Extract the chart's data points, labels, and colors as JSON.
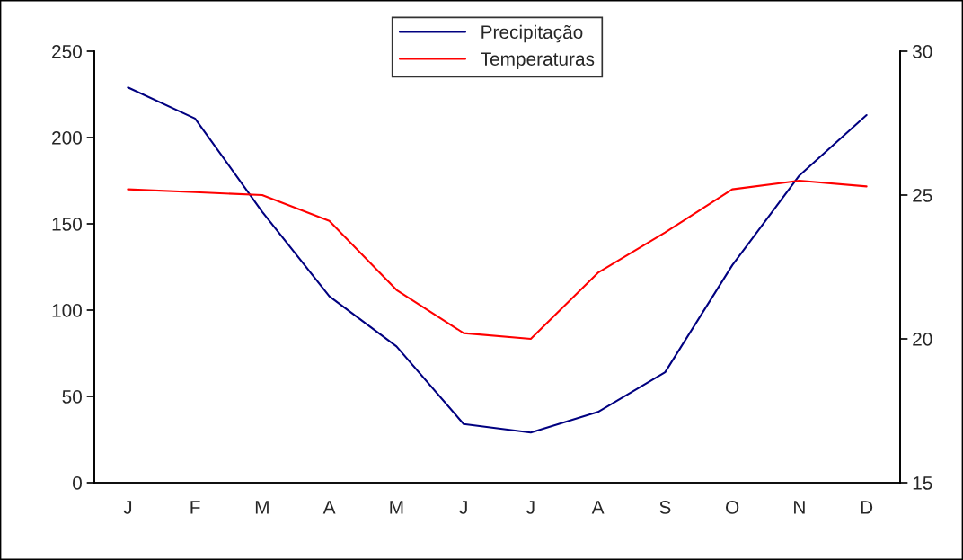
{
  "chart_data": {
    "type": "line",
    "categories": [
      "J",
      "F",
      "M",
      "A",
      "M",
      "J",
      "J",
      "A",
      "S",
      "O",
      "N",
      "D"
    ],
    "series": [
      {
        "name": "Precipitação",
        "color": "#000080",
        "values": [
          229,
          211,
          157,
          108,
          79,
          34,
          29,
          41,
          64,
          126,
          178,
          213
        ]
      },
      {
        "name": "Temperaturas",
        "color": "#ff0000",
        "axis": "y2",
        "values": [
          25.2,
          25.1,
          25.0,
          24.1,
          21.7,
          20.2,
          20.0,
          22.3,
          23.7,
          25.2,
          25.5,
          25.3
        ]
      }
    ],
    "ylim": [
      0,
      250
    ],
    "yticks": [
      0,
      50,
      100,
      150,
      200,
      250
    ],
    "y2lim": [
      15,
      30
    ],
    "y2ticks": [
      15,
      20,
      25,
      30
    ],
    "grid": false,
    "legend": "top",
    "marker": "none",
    "line_style": "solid"
  }
}
